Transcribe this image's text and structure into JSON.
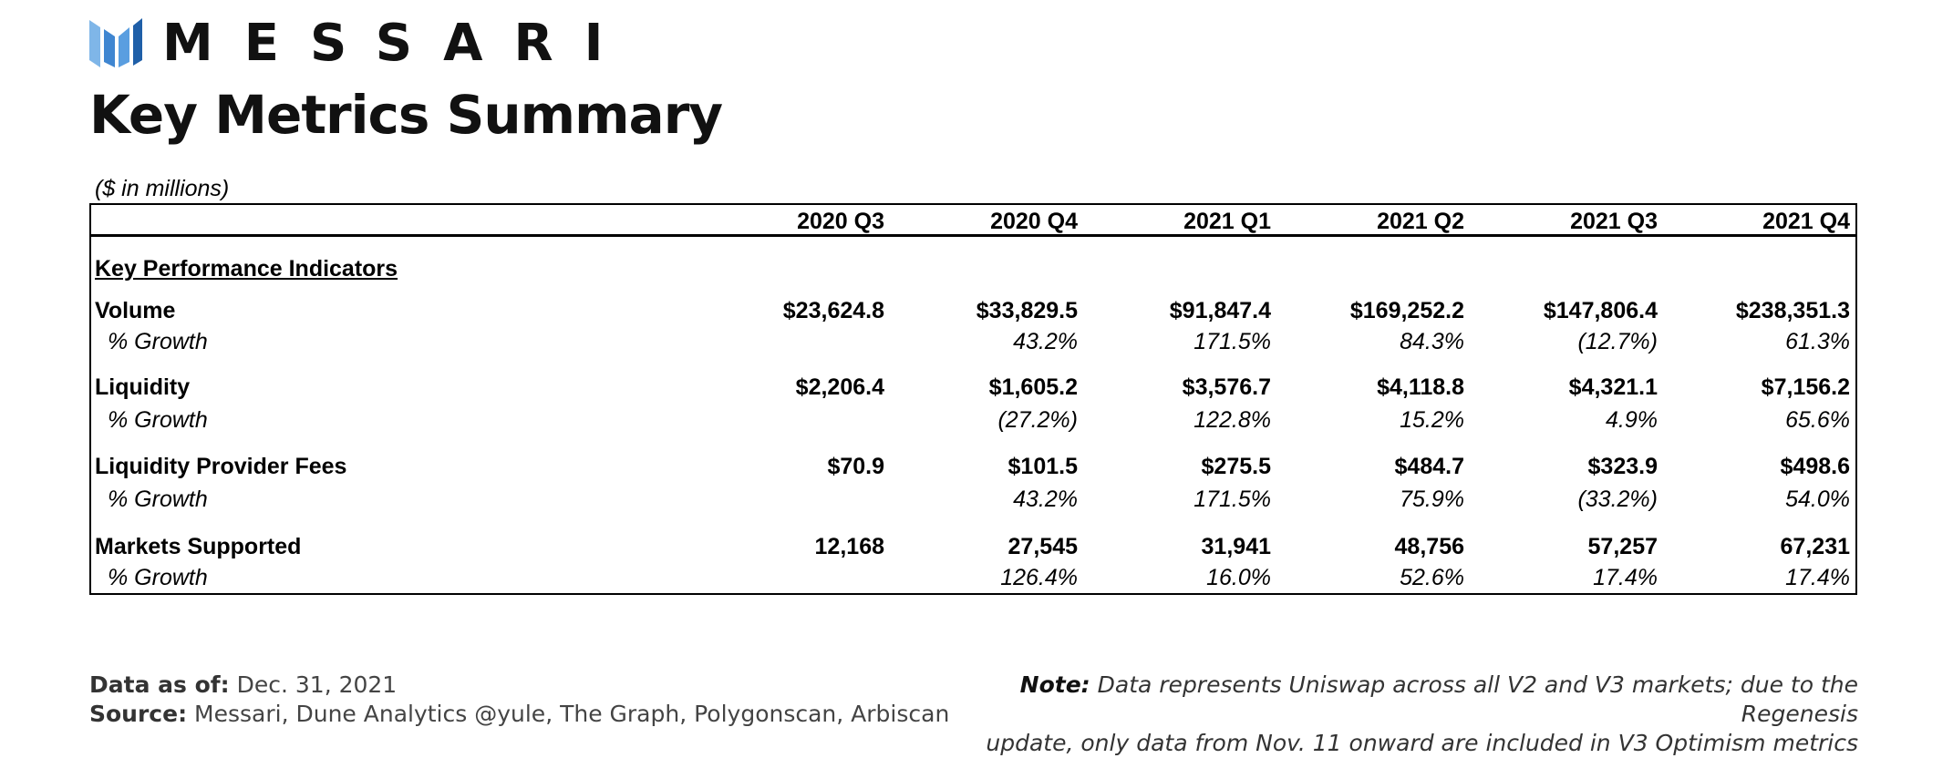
{
  "brand": {
    "name": "MESSARI",
    "logo_colors": [
      "#7fb6e8",
      "#3f86d1",
      "#1f5fa8"
    ]
  },
  "title": "Key Metrics Summary",
  "units_note": "($ in millions)",
  "table": {
    "columns": [
      "2020 Q3",
      "2020 Q4",
      "2021 Q1",
      "2021 Q2",
      "2021 Q3",
      "2021 Q4"
    ],
    "section_label": "Key Performance Indicators",
    "growth_label": "% Growth",
    "metrics": [
      {
        "name": "Volume",
        "values": [
          "$23,624.8",
          "$33,829.5",
          "$91,847.4",
          "$169,252.2",
          "$147,806.4",
          "$238,351.3"
        ],
        "growth": [
          "",
          "43.2%",
          "171.5%",
          "84.3%",
          "(12.7%)",
          "61.3%"
        ]
      },
      {
        "name": "Liquidity",
        "values": [
          "$2,206.4",
          "$1,605.2",
          "$3,576.7",
          "$4,118.8",
          "$4,321.1",
          "$7,156.2"
        ],
        "growth": [
          "",
          "(27.2%)",
          "122.8%",
          "15.2%",
          "4.9%",
          "65.6%"
        ]
      },
      {
        "name": "Liquidity Provider Fees",
        "values": [
          "$70.9",
          "$101.5",
          "$275.5",
          "$484.7",
          "$323.9",
          "$498.6"
        ],
        "growth": [
          "",
          "43.2%",
          "171.5%",
          "75.9%",
          "(33.2%)",
          "54.0%"
        ]
      },
      {
        "name": "Markets Supported",
        "values": [
          "12,168",
          "27,545",
          "31,941",
          "48,756",
          "57,257",
          "67,231"
        ],
        "growth": [
          "",
          "126.4%",
          "16.0%",
          "52.6%",
          "17.4%",
          "17.4%"
        ]
      }
    ]
  },
  "footer": {
    "data_as_of_label": "Data as of:",
    "data_as_of_value": "Dec. 31, 2021",
    "source_label": "Source:",
    "source_value": "Messari, Dune Analytics @yule, The Graph, Polygonscan, Arbiscan",
    "note_label": "Note:",
    "note_line1": "Data represents Uniswap across all V2 and V3 markets; due to the Regenesis",
    "note_line2": "update, only data from Nov. 11 onward are included in V3 Optimism metrics"
  }
}
